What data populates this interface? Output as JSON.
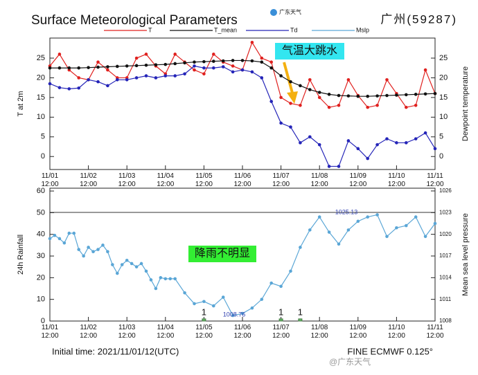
{
  "header": {
    "title": "Surface Meteorological Parameters",
    "logo": "广东天气",
    "station": "广州(59287)"
  },
  "chart_data": [
    {
      "type": "line",
      "ylabel": "T at 2m",
      "y2label": "Dewpoint temperature",
      "x": [
        0,
        6,
        12,
        18,
        24,
        30,
        36,
        42,
        48,
        54,
        60,
        66,
        72,
        78,
        84,
        90,
        96,
        102,
        108,
        114,
        120,
        126,
        132,
        138,
        144,
        150,
        156,
        162,
        168,
        174,
        180,
        186,
        192,
        198,
        204,
        210,
        216,
        222,
        228,
        234,
        240
      ],
      "xlim": [
        0,
        240
      ],
      "xticks": [
        {
          "value": 0,
          "label": "11/01 12:00"
        },
        {
          "value": 24,
          "label": "11/02 12:00"
        },
        {
          "value": 48,
          "label": "11/03 12:00"
        },
        {
          "value": 72,
          "label": "11/04 12:00"
        },
        {
          "value": 96,
          "label": "11/05 12:00"
        },
        {
          "value": 120,
          "label": "11/06 12:00"
        },
        {
          "value": 144,
          "label": "11/07 12:00"
        },
        {
          "value": 168,
          "label": "11/08 12:00"
        },
        {
          "value": 192,
          "label": "11/09 12:00"
        },
        {
          "value": 216,
          "label": "11/10 12:00"
        },
        {
          "value": 240,
          "label": "11/11 12:00"
        }
      ],
      "ylim": [
        -3.3,
        30.1
      ],
      "yticks": [
        0,
        5,
        10,
        15,
        20,
        25
      ],
      "y2lim": [
        -3.3,
        30.1
      ],
      "y2ticks": [
        0,
        5,
        10,
        15,
        20,
        25
      ],
      "series": [
        {
          "name": "T",
          "color": "#e0201e",
          "values": [
            23,
            26,
            22,
            20,
            19.5,
            24,
            22,
            20,
            20,
            25,
            26,
            23,
            21,
            26,
            24,
            22,
            21,
            26,
            24,
            23,
            22,
            29,
            25,
            24,
            15,
            13.5,
            13,
            19.5,
            15,
            12.5,
            13,
            19.5,
            15.5,
            12.5,
            13,
            19.5,
            16,
            12.5,
            13,
            22,
            16
          ]
        },
        {
          "name": "T_mean",
          "color": "#111111",
          "values": [
            22.5,
            22.5,
            22.5,
            22.5,
            22.6,
            22.7,
            22.8,
            22.9,
            23,
            23.1,
            23.2,
            23.3,
            23.4,
            23.6,
            23.8,
            24,
            24.1,
            24.2,
            24.3,
            24.4,
            24.4,
            24.3,
            24,
            22.5,
            20.5,
            19,
            18,
            17,
            16.3,
            15.8,
            15.5,
            15.4,
            15.3,
            15.3,
            15.4,
            15.5,
            15.6,
            15.7,
            15.8,
            15.9,
            16
          ]
        },
        {
          "name": "Td",
          "color": "#2424b8",
          "axis": "y2",
          "values": [
            18.5,
            17.5,
            17.2,
            17.4,
            19.5,
            19,
            18,
            19.5,
            19.5,
            20,
            20.5,
            20,
            20.5,
            20.5,
            21,
            23,
            22.5,
            22.5,
            22.8,
            21.5,
            22,
            21.5,
            20,
            14,
            8.5,
            7.5,
            3.5,
            5,
            3,
            -2.5,
            -2.5,
            4,
            2,
            -0.5,
            3,
            4.5,
            3.5,
            3.5,
            4.5,
            6,
            2
          ]
        }
      ],
      "annotation": "气温大跳水"
    },
    {
      "type": "line",
      "ylabel": "24h Rainfall",
      "y2label": "Mean sea level pressure",
      "x": [
        0,
        3,
        6,
        9,
        12,
        15,
        18,
        21,
        24,
        27,
        30,
        33,
        36,
        39,
        42,
        45,
        48,
        51,
        54,
        57,
        60,
        63,
        66,
        69,
        72,
        75,
        78,
        84,
        90,
        96,
        102,
        108,
        114,
        120,
        126,
        132,
        138,
        144,
        150,
        156,
        162,
        168,
        174,
        180,
        186,
        192,
        198,
        204,
        210,
        216,
        222,
        228,
        234,
        240
      ],
      "xlim": [
        0,
        240
      ],
      "xticks": [
        {
          "value": 0,
          "label": "11/01 12:00"
        },
        {
          "value": 24,
          "label": "11/02 12:00"
        },
        {
          "value": 48,
          "label": "11/03 12:00"
        },
        {
          "value": 72,
          "label": "11/04 12:00"
        },
        {
          "value": 96,
          "label": "11/05 12:00"
        },
        {
          "value": 120,
          "label": "11/06 12:00"
        },
        {
          "value": 144,
          "label": "11/07 12:00"
        },
        {
          "value": 168,
          "label": "11/08 12:00"
        },
        {
          "value": 192,
          "label": "11/09 12:00"
        },
        {
          "value": 216,
          "label": "11/10 12:00"
        },
        {
          "value": 240,
          "label": "11/11 12:00"
        }
      ],
      "ylim": [
        0,
        61.3
      ],
      "yticks": [
        0,
        10,
        20,
        30,
        40,
        50,
        60
      ],
      "y2lim": [
        1008,
        1026.38
      ],
      "y2ticks": [
        1008,
        1011,
        1014,
        1017,
        1020,
        1023,
        1026
      ],
      "series": [
        {
          "name": "Mslp",
          "color": "#5aa6d6",
          "axis": "y2",
          "values": [
            1019.4,
            1019.85,
            1019.4,
            1018.8,
            1020.15,
            1020.15,
            1017.9,
            1017.0,
            1018.2,
            1017.6,
            1017.9,
            1018.5,
            1017.6,
            1015.8,
            1014.6,
            1015.8,
            1016.4,
            1015.95,
            1015.5,
            1015.95,
            1014.9,
            1013.7,
            1012.5,
            1014.0,
            1013.85,
            1013.85,
            1013.85,
            1011.9,
            1010.4,
            1010.7,
            1010.1,
            1011.3,
            1008.76,
            1009.05,
            1009.8,
            1011.0,
            1013.25,
            1012.8,
            1014.9,
            1018.2,
            1020.6,
            1022.4,
            1020.3,
            1018.65,
            1020.6,
            1021.8,
            1022.4,
            1022.7,
            1019.7,
            1020.9,
            1021.2,
            1022.4,
            1019.7,
            1021.5
          ]
        }
      ],
      "rain": {
        "color": "#66bb66",
        "x": [
          96,
          144,
          156
        ],
        "values": [
          1,
          1,
          1
        ],
        "value_labels": [
          "1",
          "1",
          "1"
        ]
      },
      "pressure_labels": [
        "1008.76",
        "1025.13"
      ],
      "annotation": "降雨不明显"
    }
  ],
  "footer": {
    "left": "Initial time: 2021/11/01/12(UTC)",
    "right": "FINE ECMWF 0.125°",
    "watermark": "@广东天气"
  }
}
